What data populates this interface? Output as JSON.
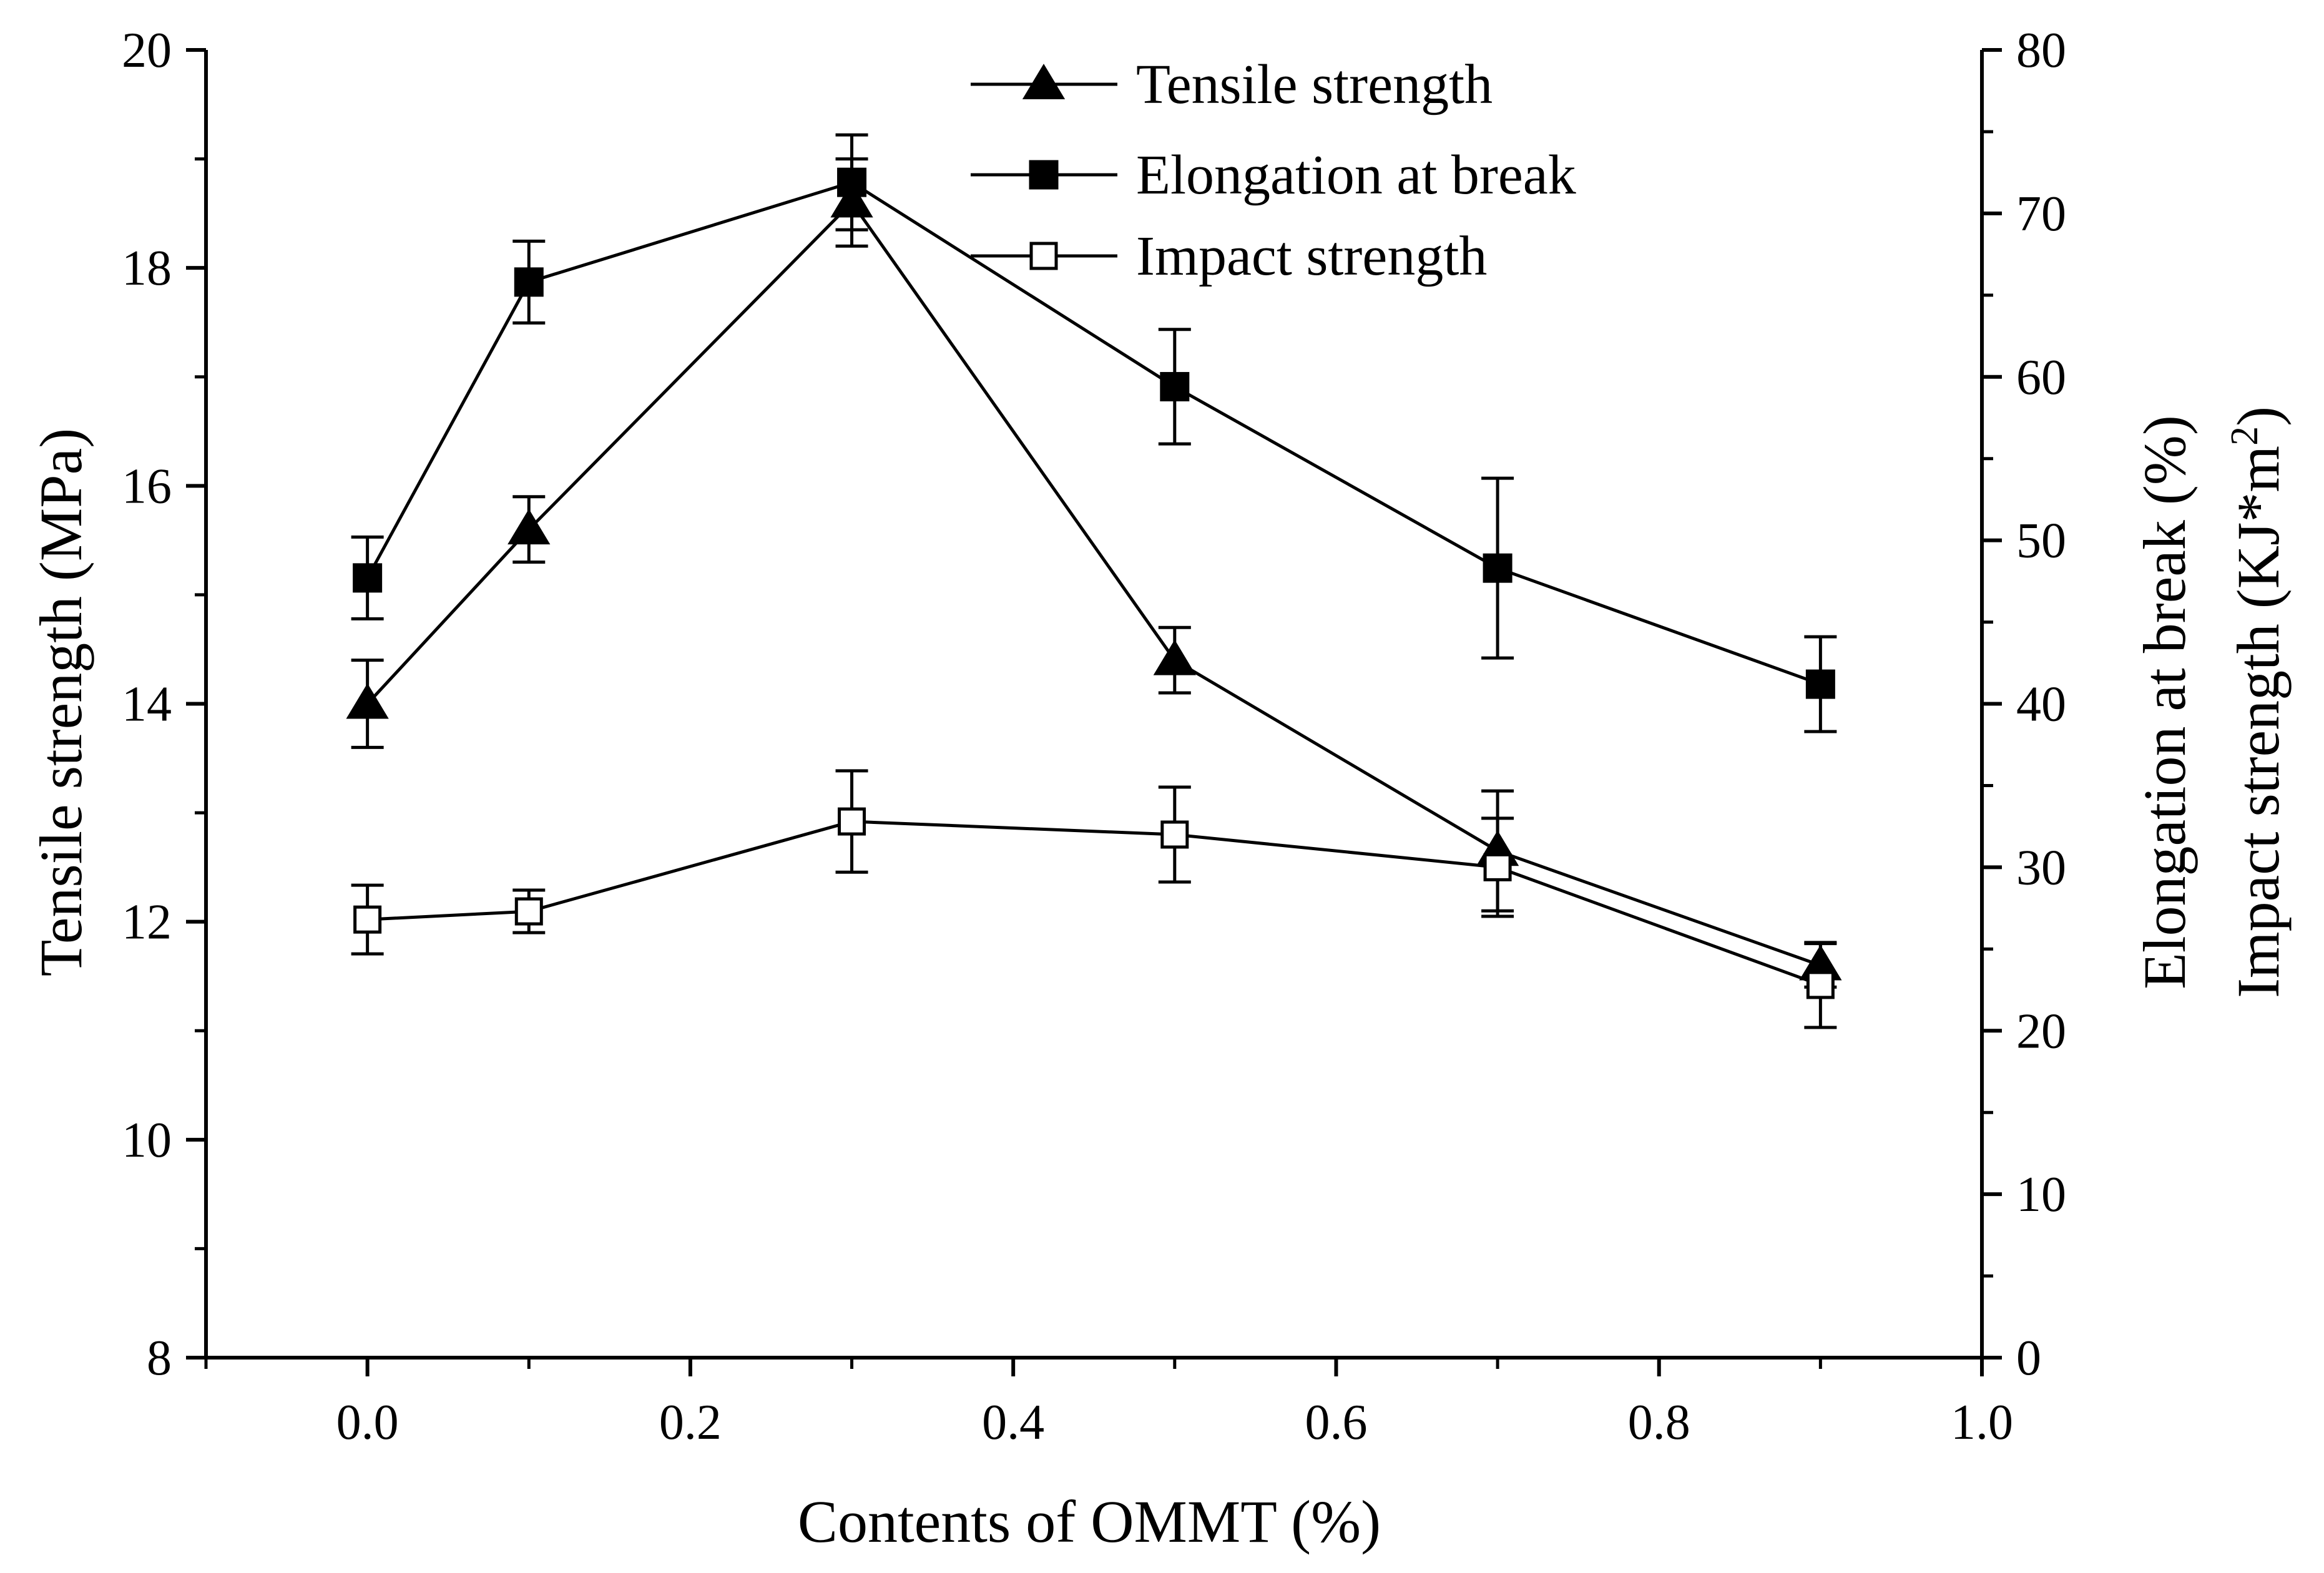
{
  "chart_data": {
    "type": "line",
    "x": [
      0.0,
      0.1,
      0.3,
      0.5,
      0.7,
      0.9
    ],
    "xlabel": "Contents of OMMT (%)",
    "xlim": [
      -0.1,
      1.0
    ],
    "xticks": [
      0.0,
      0.2,
      0.4,
      0.6,
      0.8,
      1.0
    ],
    "xtick_labels": [
      "0.0",
      "0.2",
      "0.4",
      "0.6",
      "0.8",
      "1.0"
    ],
    "ylabel_left": "Tensile strength (MPa)",
    "ylim_left": [
      8,
      20
    ],
    "yticks_left": [
      8,
      10,
      12,
      14,
      16,
      18,
      20
    ],
    "ytick_labels_left": [
      "8",
      "10",
      "12",
      "14",
      "16",
      "18",
      "20"
    ],
    "ylabel_right_1": "Elongation at break (%)",
    "ylabel_right_2_main": "Impact strength (KJ*m",
    "ylabel_right_2_sup": "2",
    "ylabel_right_2_close": ")",
    "ylim_right": [
      0,
      80
    ],
    "yticks_right": [
      0,
      10,
      20,
      30,
      40,
      50,
      60,
      70,
      80
    ],
    "ytick_labels_right": [
      "0",
      "10",
      "20",
      "30",
      "40",
      "50",
      "60",
      "70",
      "80"
    ],
    "legend_position": "top-center",
    "series": [
      {
        "name": "Tensile strength",
        "axis": "left",
        "marker": "triangle-filled",
        "values": [
          14.0,
          15.6,
          18.6,
          14.4,
          12.65,
          11.6
        ],
        "errors": [
          0.4,
          0.3,
          0.4,
          0.3,
          0.55,
          0.2
        ]
      },
      {
        "name": "Elongation at break",
        "axis": "right",
        "marker": "square-filled",
        "values": [
          47.7,
          65.8,
          71.9,
          59.4,
          48.3,
          41.2
        ],
        "errors": [
          2.5,
          2.5,
          2.9,
          3.5,
          5.5,
          2.9
        ]
      },
      {
        "name": "Impact strength",
        "axis": "right",
        "marker": "square-open",
        "values": [
          26.8,
          27.3,
          32.8,
          32.0,
          30.0,
          22.8
        ],
        "errors": [
          2.1,
          1.3,
          3.1,
          2.9,
          3.0,
          2.6
        ]
      }
    ]
  }
}
